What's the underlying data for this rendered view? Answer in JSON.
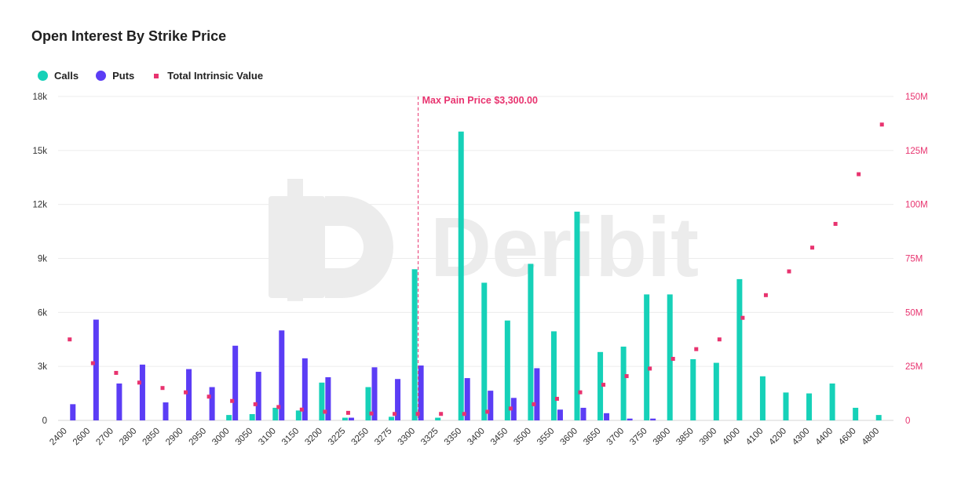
{
  "title": "Open Interest By Strike Price",
  "watermark": "Deribit",
  "legend": {
    "calls": "Calls",
    "puts": "Puts",
    "tiv": "Total Intrinsic Value"
  },
  "colors": {
    "calls": "#16d1b8",
    "puts": "#5b3df5",
    "tiv": "#e8336f",
    "maxpain": "#e8336f"
  },
  "chart_data": {
    "type": "bar",
    "title": "Open Interest By Strike Price",
    "categories": [
      "2400",
      "2600",
      "2700",
      "2800",
      "2850",
      "2900",
      "2950",
      "3000",
      "3050",
      "3100",
      "3150",
      "3200",
      "3225",
      "3250",
      "3275",
      "3300",
      "3325",
      "3350",
      "3400",
      "3450",
      "3500",
      "3550",
      "3600",
      "3650",
      "3700",
      "3750",
      "3800",
      "3850",
      "3900",
      "4000",
      "4100",
      "4200",
      "4300",
      "4400",
      "4600",
      "4800"
    ],
    "series": [
      {
        "name": "Calls",
        "axis": "left",
        "values": [
          0,
          0,
          0,
          0,
          0,
          0,
          0,
          300,
          350,
          700,
          550,
          2100,
          150,
          1850,
          200,
          8400,
          150,
          16050,
          7650,
          5550,
          8700,
          4950,
          11600,
          3800,
          4100,
          7000,
          7000,
          3400,
          3200,
          7850,
          2450,
          1550,
          1500,
          2050,
          700,
          300
        ]
      },
      {
        "name": "Puts",
        "axis": "left",
        "values": [
          900,
          5600,
          2050,
          3100,
          1000,
          2850,
          1850,
          4150,
          2700,
          5000,
          3450,
          2400,
          150,
          2950,
          2300,
          3050,
          0,
          2350,
          1650,
          1250,
          2900,
          600,
          700,
          400,
          100,
          100,
          0,
          0,
          0,
          0,
          0,
          0,
          0,
          0,
          0,
          0
        ]
      },
      {
        "name": "Total Intrinsic Value",
        "axis": "right",
        "type": "scatter",
        "values": [
          37.5,
          26.5,
          22,
          17.5,
          15,
          13,
          11,
          9,
          7.5,
          6.2,
          5,
          4,
          3.5,
          3.2,
          3,
          3,
          3,
          3,
          4,
          5.5,
          7.5,
          10,
          13,
          16.5,
          20.5,
          24,
          28.5,
          33,
          37.5,
          47.5,
          58,
          69,
          80,
          91,
          114,
          137
        ]
      }
    ],
    "y_left": {
      "ticks": [
        "0",
        "3k",
        "6k",
        "9k",
        "12k",
        "15k",
        "18k"
      ],
      "range": [
        0,
        18000
      ]
    },
    "y_right": {
      "ticks": [
        "0",
        "25M",
        "50M",
        "75M",
        "100M",
        "125M",
        "150M"
      ],
      "range": [
        0,
        150
      ]
    },
    "annotation": {
      "label": "Max Pain Price $3,300.00",
      "category": "3300"
    },
    "grid": true,
    "legend_position": "top-left"
  }
}
